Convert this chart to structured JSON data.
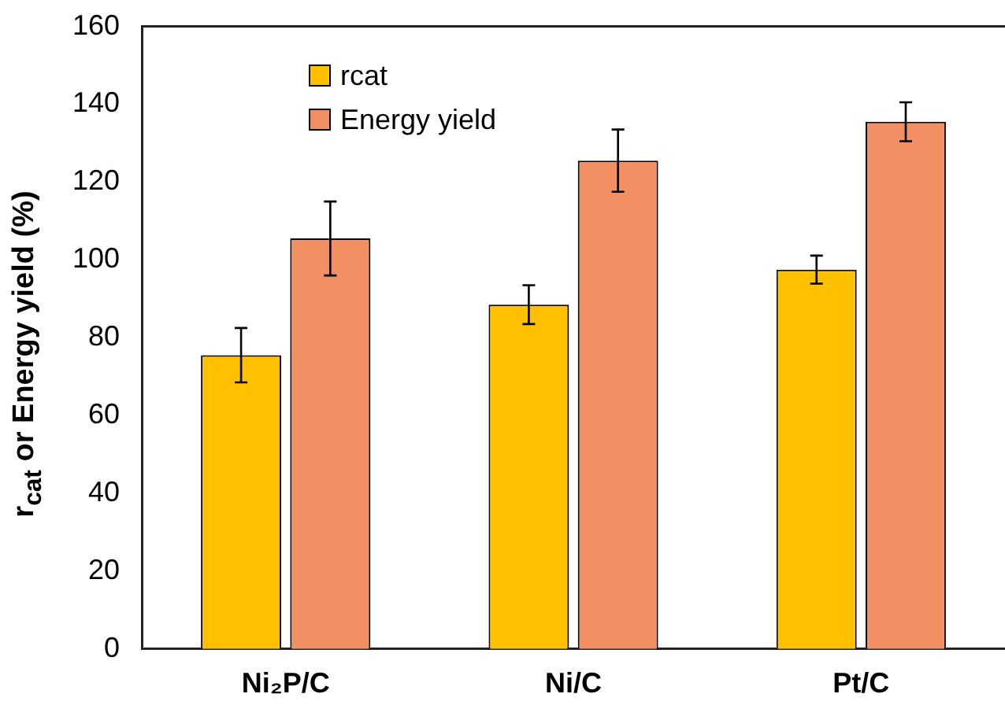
{
  "chart_data": {
    "type": "bar",
    "ylabel": "r$_{cat}$ or Energy yield (%)",
    "categories": [
      "Ni₂P/C",
      "Ni/C",
      "Pt/C"
    ],
    "series": [
      {
        "name": "rcat",
        "color": "#ffc000",
        "values": [
          75.5,
          88.5,
          97.5
        ],
        "errors": [
          7,
          5,
          3.6
        ]
      },
      {
        "name": "Energy yield",
        "color": "#f29063",
        "values": [
          105.5,
          125.5,
          135.5
        ],
        "errors": [
          9.5,
          8,
          5
        ]
      }
    ],
    "ylim": [
      0,
      160
    ],
    "yticks": [
      0,
      20,
      40,
      60,
      80,
      100,
      120,
      140,
      160
    ],
    "grid": false,
    "legend": "top left"
  }
}
